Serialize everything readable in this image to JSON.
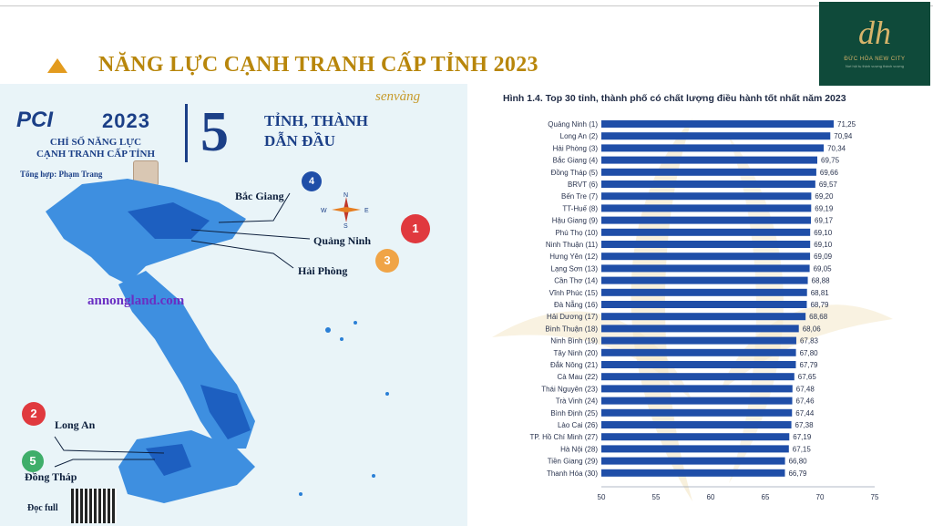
{
  "slide": {
    "title": "NĂNG LỰC CẠNH TRANH CẤP TỈNH 2023"
  },
  "logo": {
    "mark": "dh",
    "name": "ĐỨC HÒA NEW CITY",
    "tagline": "Nơi hội tụ thịnh vượng thành vượng"
  },
  "infographic": {
    "pci_logo": "PCI",
    "pci_year": "2023",
    "subtitle_line1": "CHỈ SỐ NĂNG LỰC",
    "subtitle_line2": "CẠNH TRANH CẤP TỈNH",
    "author": "Tổng hợp: Phạm Trang",
    "big_number": "5",
    "lead_line1": "TỈNH, THÀNH",
    "lead_line2": "DẪN ĐẦU",
    "brand": "senvàng",
    "compass": {
      "n": "N",
      "s": "S",
      "e": "E",
      "w": "W"
    },
    "watermark_site": "annongland.com",
    "read_full": "Đọc full",
    "callouts": [
      {
        "rank": "1",
        "name": "Quảng Ninh",
        "color": "#e0393e"
      },
      {
        "rank": "2",
        "name": "Long An",
        "color": "#e0393e"
      },
      {
        "rank": "3",
        "name": "Hải Phòng",
        "color": "#f0a446"
      },
      {
        "rank": "4",
        "name": "Bắc Giang",
        "color": "#1f4ea8"
      },
      {
        "rank": "5",
        "name": "Đồng Tháp",
        "color": "#3fae6a"
      }
    ],
    "map_colors": {
      "land": "#3e8fe0",
      "dark": "#1d5fc0",
      "island": "#2a7fd6"
    }
  },
  "chart_title": "Hình 1.4. Top 30 tỉnh, thành phố có chất lượng điều hành tốt nhất năm 2023",
  "chart_data": {
    "type": "bar",
    "orientation": "horizontal",
    "title": "Hình 1.4. Top 30 tỉnh, thành phố có chất lượng điều hành tốt nhất năm 2023",
    "bar_color": "#1f4ea8",
    "xlim": [
      50,
      75
    ],
    "xticks": [
      50,
      55,
      60,
      65,
      70,
      75
    ],
    "grid": false,
    "categories": [
      "Quảng Ninh (1)",
      "Long An (2)",
      "Hải Phòng (3)",
      "Bắc Giang (4)",
      "Đồng Tháp (5)",
      "BRVT (6)",
      "Bến Tre (7)",
      "TT-Huế (8)",
      "Hậu Giang (9)",
      "Phú Thọ (10)",
      "Ninh Thuận (11)",
      "Hưng Yên (12)",
      "Lạng Sơn (13)",
      "Cần Thơ (14)",
      "Vĩnh Phúc (15)",
      "Đà Nẵng (16)",
      "Hải Dương (17)",
      "Bình Thuận (18)",
      "Ninh Bình (19)",
      "Tây Ninh (20)",
      "Đắk Nông (21)",
      "Cà Mau (22)",
      "Thái Nguyên (23)",
      "Trà Vinh (24)",
      "Bình Định (25)",
      "Lào Cai (26)",
      "TP. Hồ Chí Minh (27)",
      "Hà Nội (28)",
      "Tiền Giang (29)",
      "Thanh Hóa (30)"
    ],
    "values": [
      71.25,
      70.94,
      70.34,
      69.75,
      69.66,
      69.57,
      69.2,
      69.19,
      69.17,
      69.1,
      69.1,
      69.09,
      69.05,
      68.88,
      68.81,
      68.79,
      68.68,
      68.06,
      67.83,
      67.8,
      67.79,
      67.65,
      67.48,
      67.46,
      67.44,
      67.38,
      67.19,
      67.15,
      66.8,
      66.79
    ],
    "value_labels": [
      "71,25",
      "70,94",
      "70,34",
      "69,75",
      "69,66",
      "69,57",
      "69,20",
      "69,19",
      "69,17",
      "69,10",
      "69,10",
      "69,09",
      "69,05",
      "68,88",
      "68,81",
      "68,79",
      "68,68",
      "68,06",
      "67,83",
      "67,80",
      "67,79",
      "67,65",
      "67,48",
      "67,46",
      "67,44",
      "67,38",
      "67,19",
      "67,15",
      "66,80",
      "66,79"
    ]
  }
}
